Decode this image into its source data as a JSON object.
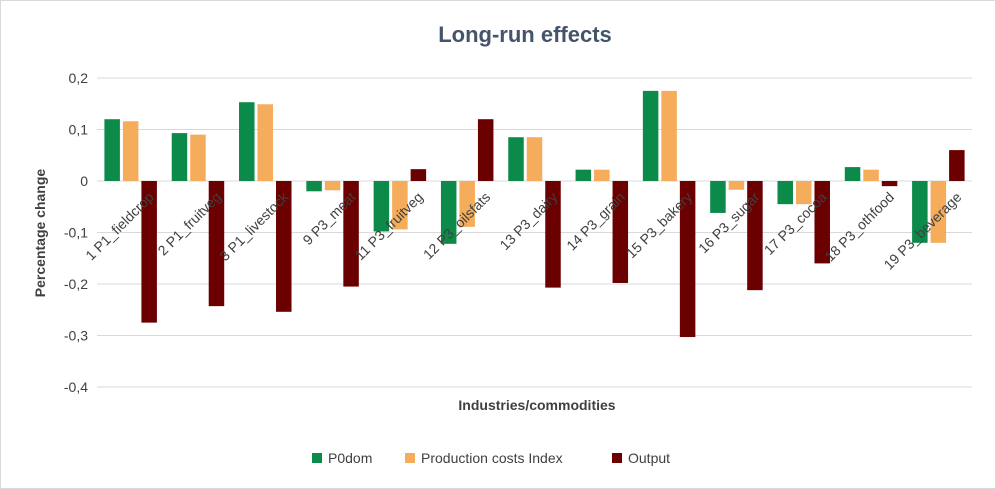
{
  "chart_data": {
    "type": "bar",
    "title": "Long-run effects",
    "xlabel": "Industries/commodities",
    "ylabel": "Percentage change",
    "ylim": [
      -0.4,
      0.2
    ],
    "yticks": [
      0.2,
      0.1,
      0,
      -0.1,
      -0.2,
      -0.3,
      -0.4
    ],
    "ytick_labels": [
      "0,2",
      "0,1",
      "0",
      "-0,1",
      "-0,2",
      "-0,3",
      "-0,4"
    ],
    "grid": true,
    "legend_position": "bottom",
    "categories": [
      "1 P1_fieldcrop",
      "2 P1_fruitveg",
      "3 P1_livestock",
      "9 P3_meat",
      "11 P3_fruitveg",
      "12 P3_oilsfats",
      "13 P3_dairy",
      "14 P3_grain",
      "15 P3_bakery",
      "16 P3_sugar",
      "17 P3_cocoa",
      "18 P3_othfood",
      "19 P3_beverage"
    ],
    "series": [
      {
        "name": "P0dom",
        "color": "#0b8a4a",
        "values": [
          0.12,
          0.093,
          0.153,
          -0.02,
          -0.098,
          -0.122,
          0.085,
          0.022,
          0.175,
          -0.062,
          -0.045,
          0.027,
          -0.12
        ]
      },
      {
        "name": "Production costs Index",
        "color": "#f5ac5b",
        "values": [
          0.116,
          0.09,
          0.149,
          -0.018,
          -0.094,
          -0.089,
          0.085,
          0.022,
          0.175,
          -0.017,
          -0.045,
          0.022,
          -0.12
        ]
      },
      {
        "name": "Output",
        "color": "#6b0000",
        "values": [
          -0.275,
          -0.243,
          -0.254,
          -0.205,
          0.023,
          0.12,
          -0.207,
          -0.198,
          -0.303,
          -0.212,
          -0.16,
          -0.01,
          0.06
        ]
      }
    ]
  }
}
